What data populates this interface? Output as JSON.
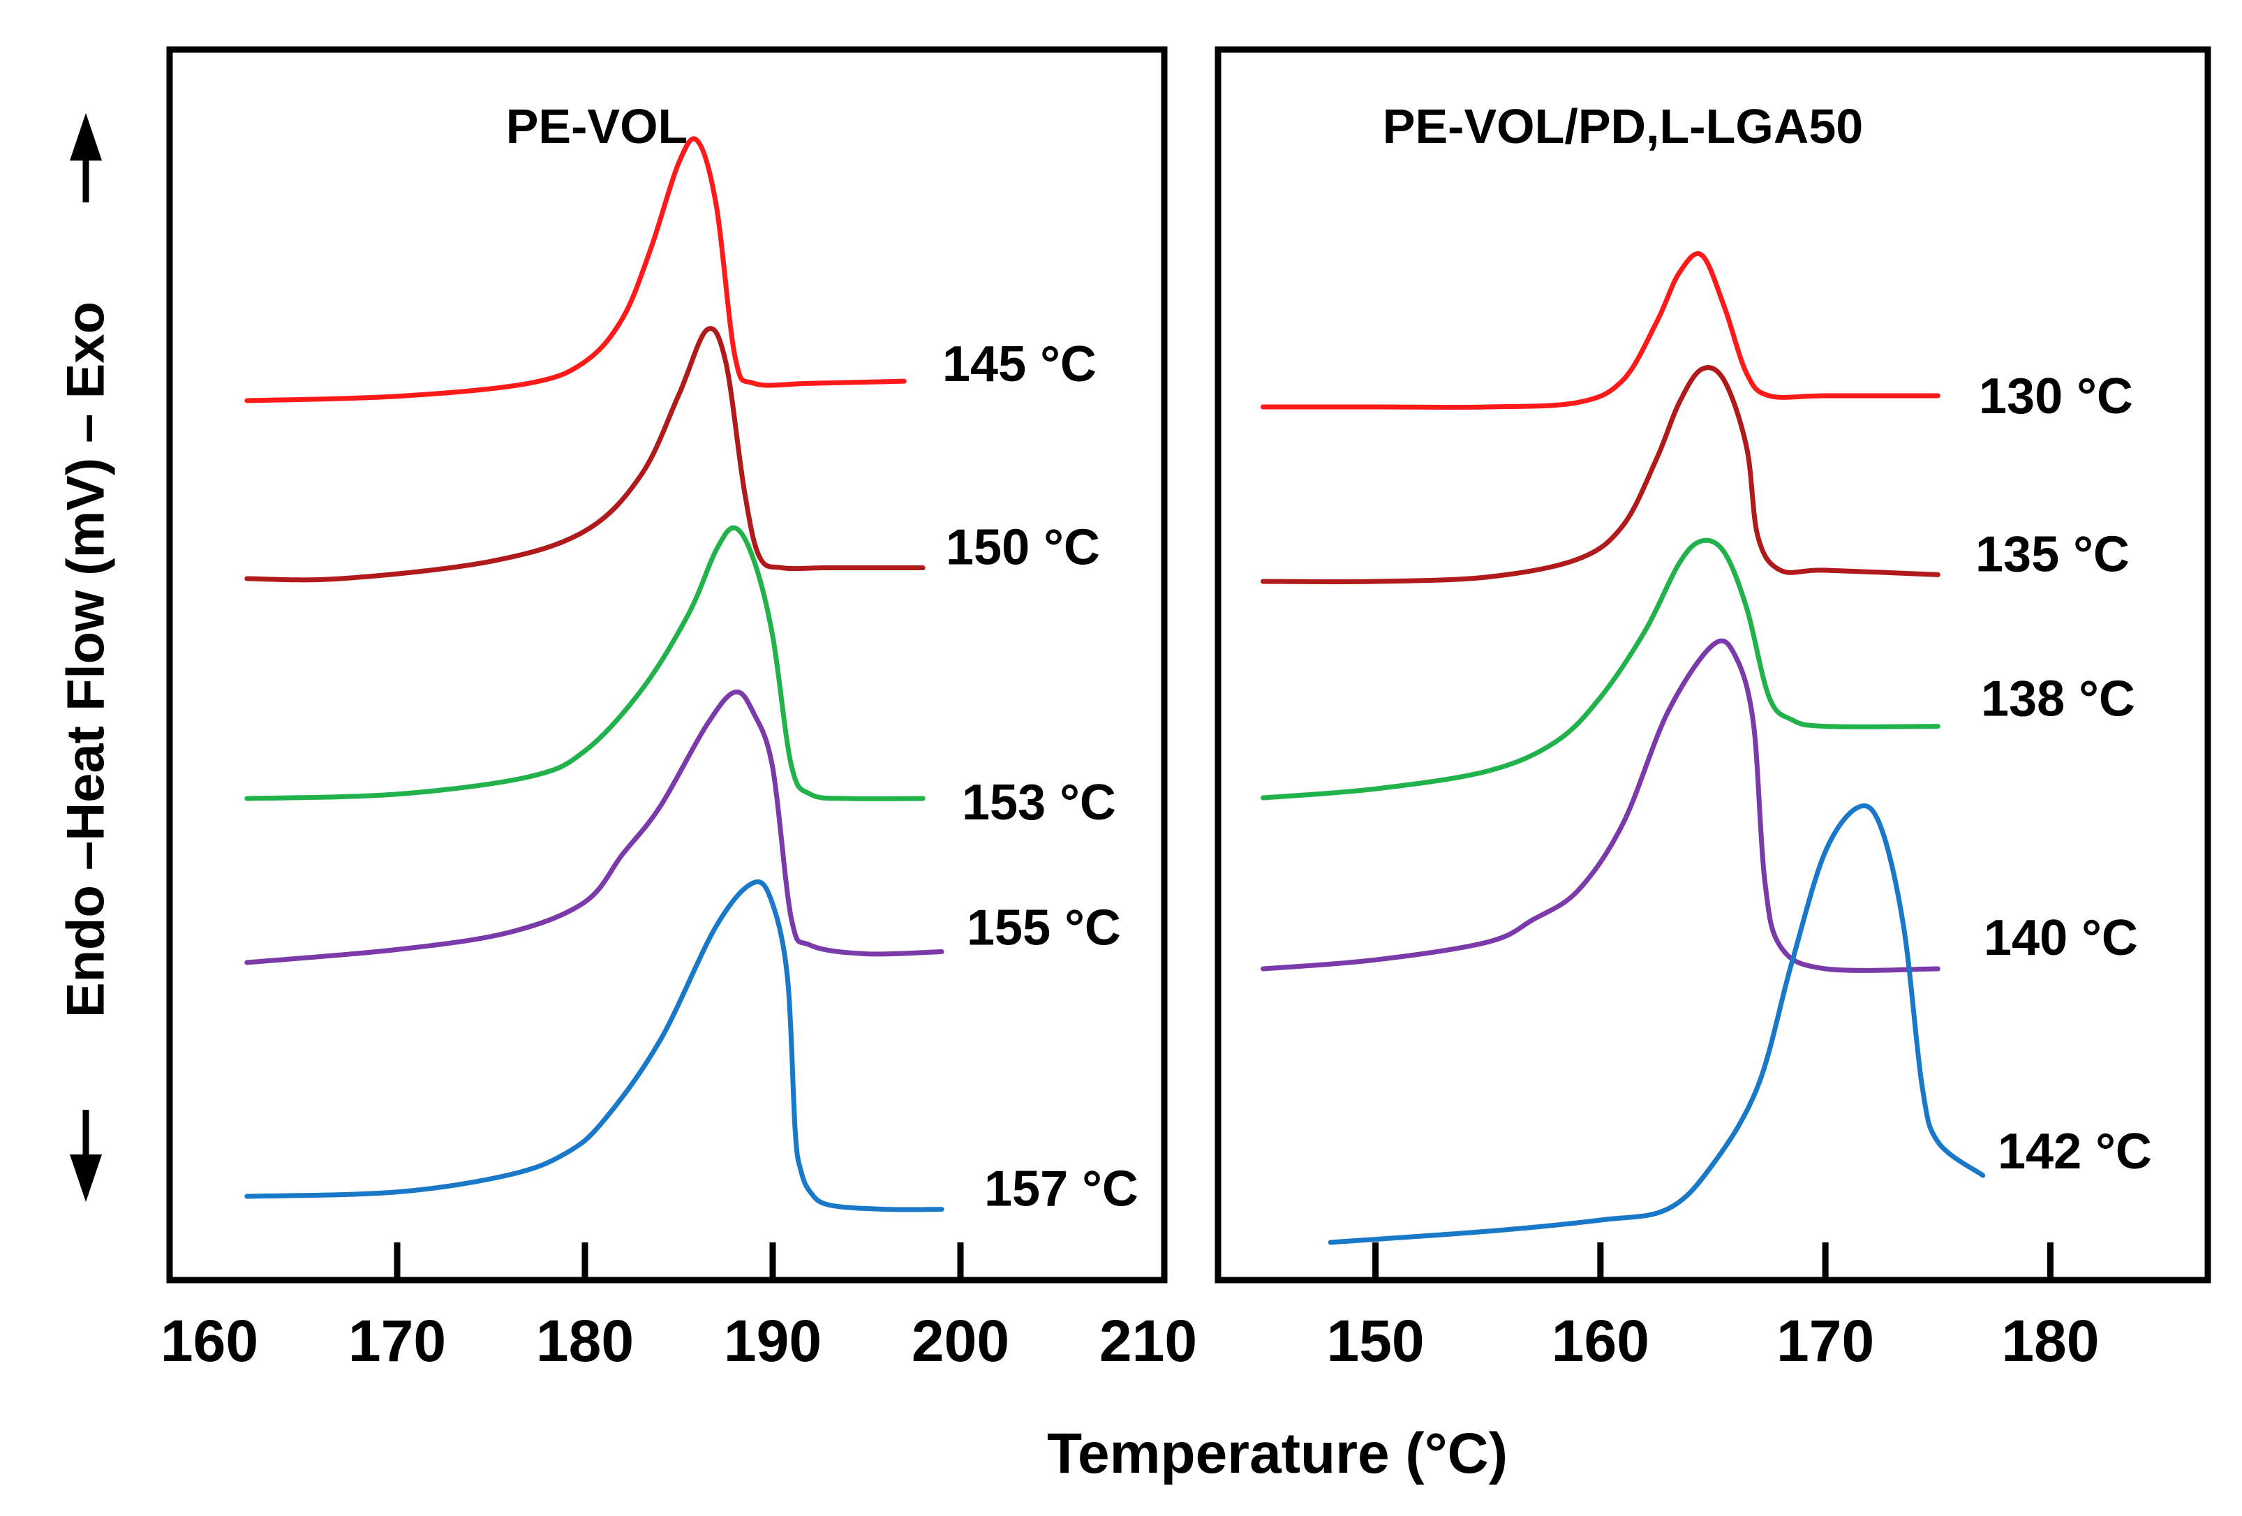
{
  "chart_data": [
    {
      "type": "line",
      "title": "PE-VOL",
      "xlabel": "Temperature (°C)",
      "ylabel": "Endo –Heat Flow (mV) – Exo",
      "xlim": [
        160,
        210
      ],
      "xticks": [
        160,
        170,
        180,
        190,
        200,
        210
      ],
      "legend_placement": "right of each curve",
      "series": [
        {
          "name": "145 °C",
          "color": "#ff1a1a",
          "x": [
            162,
            170,
            177,
            180,
            182,
            183.5,
            185,
            186,
            187,
            188,
            189,
            192,
            197
          ],
          "y": [
            0.1,
            0.12,
            0.18,
            0.28,
            0.48,
            0.8,
            1.2,
            1.3,
            1.0,
            0.3,
            0.18,
            0.18,
            0.19
          ]
        },
        {
          "name": "150 °C",
          "color": "#b01a1a",
          "x": [
            162,
            167,
            175,
            180,
            183,
            185,
            186.5,
            187.5,
            188.5,
            189.3,
            190.5,
            193,
            198
          ],
          "y": [
            0.1,
            0.1,
            0.18,
            0.32,
            0.58,
            0.95,
            1.25,
            1.1,
            0.5,
            0.2,
            0.15,
            0.15,
            0.15
          ]
        },
        {
          "name": "153 °C",
          "color": "#22b24c",
          "x": [
            162,
            170,
            177,
            180,
            183,
            185.5,
            187,
            188,
            189,
            190,
            191,
            192,
            194,
            198
          ],
          "y": [
            0.1,
            0.12,
            0.2,
            0.32,
            0.6,
            0.95,
            1.25,
            1.35,
            1.2,
            0.85,
            0.25,
            0.12,
            0.1,
            0.1
          ]
        },
        {
          "name": "155 °C",
          "color": "#7a3aaa",
          "x": [
            162,
            170,
            176,
            180,
            182,
            184,
            186.5,
            188,
            189,
            190,
            191,
            192,
            195,
            199
          ],
          "y": [
            0.1,
            0.16,
            0.24,
            0.38,
            0.6,
            0.82,
            1.2,
            1.35,
            1.25,
            1.0,
            0.3,
            0.18,
            0.14,
            0.15
          ]
        },
        {
          "name": "157 °C",
          "color": "#1a78c8",
          "x": [
            162,
            170,
            176,
            179,
            181,
            184,
            187,
            189,
            190,
            190.8,
            191.2,
            191.5,
            192,
            193,
            196,
            199
          ],
          "y": [
            0.1,
            0.12,
            0.2,
            0.3,
            0.45,
            0.82,
            1.35,
            1.55,
            1.45,
            1.1,
            0.4,
            0.22,
            0.12,
            0.06,
            0.04,
            0.04
          ]
        }
      ]
    },
    {
      "type": "line",
      "title": "PE-VOL/PD,L-LGA50",
      "xlabel": "Temperature (°C)",
      "ylabel": "Endo –Heat Flow (mV) – Exo",
      "xlim": [
        143,
        187
      ],
      "xticks": [
        150,
        160,
        170,
        180
      ],
      "legend_placement": "right of each curve",
      "series": [
        {
          "name": "130 °C",
          "color": "#ff1a1a",
          "x": [
            145,
            150,
            155,
            159,
            161,
            162.5,
            163.5,
            164.5,
            165.5,
            166.5,
            167.5,
            170,
            175
          ],
          "y": [
            0.1,
            0.1,
            0.1,
            0.12,
            0.22,
            0.48,
            0.7,
            0.78,
            0.55,
            0.25,
            0.15,
            0.15,
            0.15
          ]
        },
        {
          "name": "135 °C",
          "color": "#b01a1a",
          "x": [
            145,
            150,
            155,
            159,
            161,
            162.5,
            163.5,
            164.5,
            165.5,
            166.5,
            167,
            168,
            170,
            175
          ],
          "y": [
            0.1,
            0.1,
            0.12,
            0.2,
            0.35,
            0.65,
            0.9,
            1.05,
            1.0,
            0.7,
            0.3,
            0.15,
            0.15,
            0.13
          ]
        },
        {
          "name": "138 °C",
          "color": "#22b24c",
          "x": [
            145,
            150,
            155,
            158,
            160,
            162,
            163.5,
            164.5,
            165.5,
            166.5,
            167.5,
            168.5,
            170,
            175
          ],
          "y": [
            0.1,
            0.14,
            0.22,
            0.35,
            0.55,
            0.85,
            1.15,
            1.25,
            1.2,
            0.95,
            0.55,
            0.45,
            0.42,
            0.42
          ]
        },
        {
          "name": "140 °C",
          "color": "#7a3aaa",
          "x": [
            145,
            150,
            155,
            157,
            159,
            161,
            163,
            165,
            166,
            166.8,
            167.3,
            168,
            170,
            175
          ],
          "y": [
            0.1,
            0.14,
            0.22,
            0.32,
            0.45,
            0.75,
            1.25,
            1.55,
            1.5,
            1.2,
            0.5,
            0.2,
            0.1,
            0.1
          ]
        },
        {
          "name": "142 °C",
          "color": "#1a78c8",
          "x": [
            148,
            155,
            160,
            163,
            165,
            167,
            168.5,
            170,
            171.5,
            172.5,
            173.5,
            174.3,
            175,
            177
          ],
          "y": [
            0.0,
            0.05,
            0.1,
            0.15,
            0.35,
            0.7,
            1.25,
            1.75,
            1.95,
            1.85,
            1.4,
            0.7,
            0.45,
            0.3
          ]
        }
      ]
    }
  ]
}
